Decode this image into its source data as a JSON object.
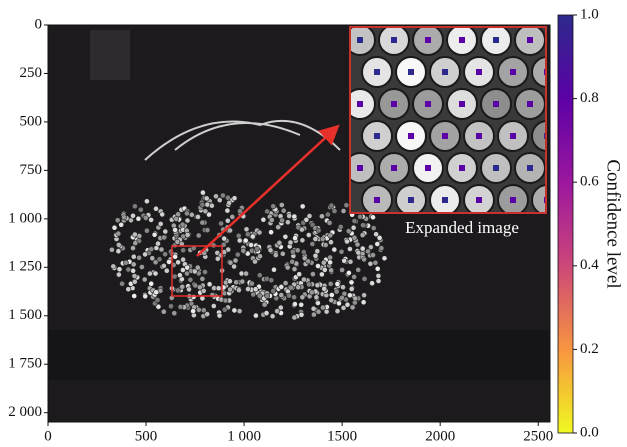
{
  "chart_data": {
    "type": "image",
    "annotation": "Expanded image",
    "xlim": [
      0,
      2560
    ],
    "ylim": [
      0,
      2048
    ],
    "xticks": [
      0,
      500,
      {
        "value": 1000,
        "label": "1 000"
      },
      1500,
      2000,
      2500
    ],
    "yticks": [
      0,
      250,
      500,
      750,
      {
        "value": 1000,
        "label": "1 000"
      },
      {
        "value": 1250,
        "label": "1 250"
      },
      {
        "value": 1500,
        "label": "1 500"
      },
      {
        "value": 1750,
        "label": "1 750"
      },
      {
        "value": 2000,
        "label": "2 000"
      }
    ],
    "colorbar": {
      "label": "Confidence level",
      "lim": [
        0,
        1
      ],
      "ticks": [
        {
          "value": 0,
          "label": "0.0"
        },
        0.2,
        0.4,
        0.6,
        0.8,
        {
          "value": 1,
          "label": "1.0"
        }
      ],
      "colors": [
        "#f0f921",
        "#f89540",
        "#cc4778",
        "#9c179e",
        "#5c01a6",
        "#2c2a8c"
      ]
    }
  }
}
